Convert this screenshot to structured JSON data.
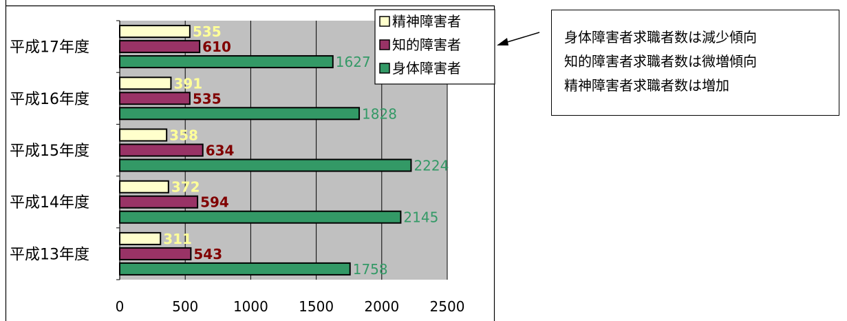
{
  "chart_data": {
    "type": "bar",
    "orientation": "horizontal",
    "categories": [
      "平成17年度",
      "平成16年度",
      "平成15年度",
      "平成14年度",
      "平成13年度"
    ],
    "series": [
      {
        "name": "精神障害者",
        "values": [
          535,
          391,
          358,
          372,
          311
        ],
        "color": "#FFFFCC",
        "label_color": "#FFFF99"
      },
      {
        "name": "知的障害者",
        "values": [
          610,
          535,
          634,
          594,
          543
        ],
        "color": "#993366",
        "label_color": "#800000"
      },
      {
        "name": "身体障害者",
        "values": [
          1627,
          1828,
          2224,
          2145,
          1758
        ],
        "color": "#339966",
        "label_color": "#339966"
      }
    ],
    "xlim": [
      0,
      2500
    ],
    "x_ticks": [
      "0",
      "500",
      "1000",
      "1500",
      "2000",
      "2500"
    ],
    "grid": true,
    "plot_background": "#C0C0C0",
    "legend_position": "top-right"
  },
  "annotation": {
    "lines": [
      "身体障害者求職者数は減少傾向",
      "知的障害者求職者数は微増傾向",
      "精神障害者求職者数は増加"
    ]
  }
}
